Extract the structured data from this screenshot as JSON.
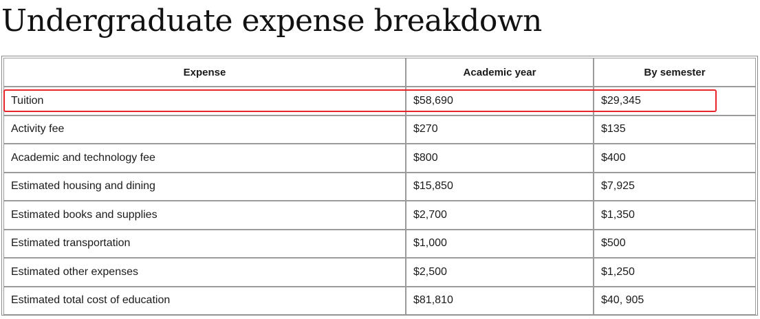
{
  "page": {
    "title": "Undergraduate expense breakdown"
  },
  "table": {
    "headers": [
      "Expense",
      "Academic year",
      "By semester"
    ],
    "rows": [
      [
        "Tuition",
        "$58,690",
        "$29,345"
      ],
      [
        "Activity fee",
        "$270",
        "$135"
      ],
      [
        "Academic and technology fee",
        "$800",
        "$400"
      ],
      [
        "Estimated housing and dining",
        "$15,850",
        "$7,925"
      ],
      [
        "Estimated books and supplies",
        "$2,700",
        "$1,350"
      ],
      [
        "Estimated transportation",
        "$1,000",
        "$500"
      ],
      [
        "Estimated other expenses",
        "$2,500",
        "$1,250"
      ],
      [
        "Estimated total cost of education",
        "$81,810",
        "$40, 905"
      ]
    ]
  },
  "annotation": {
    "highlighted_row": "Tuition",
    "color": "#e8232a"
  }
}
